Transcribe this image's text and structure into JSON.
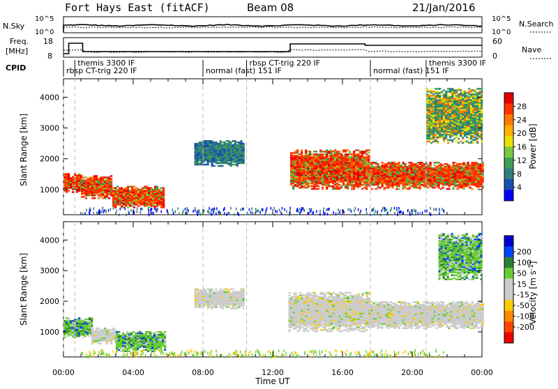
{
  "header": {
    "station": "Fort Hays East (fitACF)",
    "beam": "Beam 08",
    "date": "21/Jan/2016"
  },
  "panels": {
    "nsky": {
      "left_label": "N.Sky",
      "right_label": "N.Search",
      "left_ticks": [
        "10^5",
        "10^0"
      ],
      "right_ticks": [
        "10^5",
        "10^0"
      ]
    },
    "freq": {
      "left_label_1": "Freq.",
      "left_label_2": "[MHz]",
      "right_label": "Nave",
      "left_ticks": [
        "18",
        "8"
      ],
      "right_ticks": [
        "60",
        "0"
      ]
    },
    "cpid": {
      "label": "CPID",
      "segments": [
        {
          "text": "themis 3300 IF",
          "row": 0,
          "x_hour": 0.65
        },
        {
          "text": "rbsp CT-trig 220 IF",
          "row": 1,
          "x_hour": 0.0
        },
        {
          "text": "normal (fast) 151 IF",
          "row": 1,
          "x_hour": 8.0
        },
        {
          "text": "rbsp CT-trig 220 IF",
          "row": 0,
          "x_hour": 10.5
        },
        {
          "text": "normal (fast) 151 IF",
          "row": 1,
          "x_hour": 17.6
        },
        {
          "text": "themis 3300 IF",
          "row": 0,
          "x_hour": 20.8
        }
      ]
    }
  },
  "chart_data": [
    {
      "type": "heatmap",
      "name": "Power",
      "ylabel": "Slant Range [km]",
      "xlabel": "Time UT",
      "x_ticks": [
        "00:00",
        "04:00",
        "08:00",
        "12:00",
        "16:00",
        "20:00",
        "00:00"
      ],
      "x_range_hours": [
        0,
        24
      ],
      "y_ticks": [
        1000,
        2000,
        3000,
        4000
      ],
      "y_range_km": [
        180,
        4600
      ],
      "colorbar": {
        "label": "Power [dB]",
        "ticks": [
          4,
          8,
          12,
          16,
          20,
          24,
          28
        ],
        "colors": [
          "#0000ff",
          "#1a4fb0",
          "#2e7f7a",
          "#3fa055",
          "#7ac943",
          "#e8e000",
          "#ffb000",
          "#ff7a00",
          "#ff3300",
          "#e00000"
        ]
      },
      "regions": [
        {
          "t0": 0.0,
          "t1": 1.0,
          "r0": 900,
          "r1": 1500,
          "level": "high"
        },
        {
          "t0": 1.0,
          "t1": 2.8,
          "r0": 700,
          "r1": 1450,
          "level": "high"
        },
        {
          "t0": 2.8,
          "t1": 5.8,
          "r0": 400,
          "r1": 1100,
          "level": "high"
        },
        {
          "t0": 7.5,
          "t1": 10.3,
          "r0": 1750,
          "r1": 2600,
          "level": "low"
        },
        {
          "t0": 13.0,
          "t1": 17.5,
          "r0": 1000,
          "r1": 2300,
          "level": "high"
        },
        {
          "t0": 17.5,
          "t1": 24.0,
          "r0": 1000,
          "r1": 1900,
          "level": "high"
        },
        {
          "t0": 20.8,
          "t1": 24.0,
          "r0": 2500,
          "r1": 4300,
          "level": "mixed"
        }
      ]
    },
    {
      "type": "heatmap",
      "name": "Velocity",
      "ylabel": "Slant Range [km]",
      "xlabel": "Time UT",
      "x_ticks": [
        "00:00",
        "04:00",
        "08:00",
        "12:00",
        "16:00",
        "20:00",
        "00:00"
      ],
      "x_range_hours": [
        0,
        24
      ],
      "y_ticks": [
        1000,
        2000,
        3000,
        4000
      ],
      "y_range_km": [
        180,
        4600
      ],
      "colorbar": {
        "label": "Velocity [m s^-1]",
        "ticks": [
          200,
          100,
          50,
          15,
          -15,
          -50,
          -100,
          -200
        ],
        "colors": [
          "#0000cc",
          "#0044ff",
          "#2e7f3a",
          "#66cc33",
          "#cccccc",
          "#cccccc",
          "#ffcc00",
          "#ff8800",
          "#ff4400",
          "#ee0000"
        ]
      },
      "regions": [
        {
          "t0": 0.0,
          "t1": 1.6,
          "r0": 800,
          "r1": 1450,
          "level": "pos"
        },
        {
          "t0": 1.6,
          "t1": 3.0,
          "r0": 600,
          "r1": 1100,
          "level": "neutral"
        },
        {
          "t0": 3.0,
          "t1": 5.8,
          "r0": 350,
          "r1": 1000,
          "level": "pos"
        },
        {
          "t0": 7.5,
          "t1": 10.3,
          "r0": 1750,
          "r1": 2400,
          "level": "neutral"
        },
        {
          "t0": 12.9,
          "t1": 17.5,
          "r0": 1000,
          "r1": 2300,
          "level": "neutral"
        },
        {
          "t0": 17.5,
          "t1": 24.0,
          "r0": 1100,
          "r1": 2000,
          "level": "neutral"
        },
        {
          "t0": 21.5,
          "t1": 24.0,
          "r0": 2700,
          "r1": 4200,
          "level": "pos"
        }
      ]
    }
  ]
}
